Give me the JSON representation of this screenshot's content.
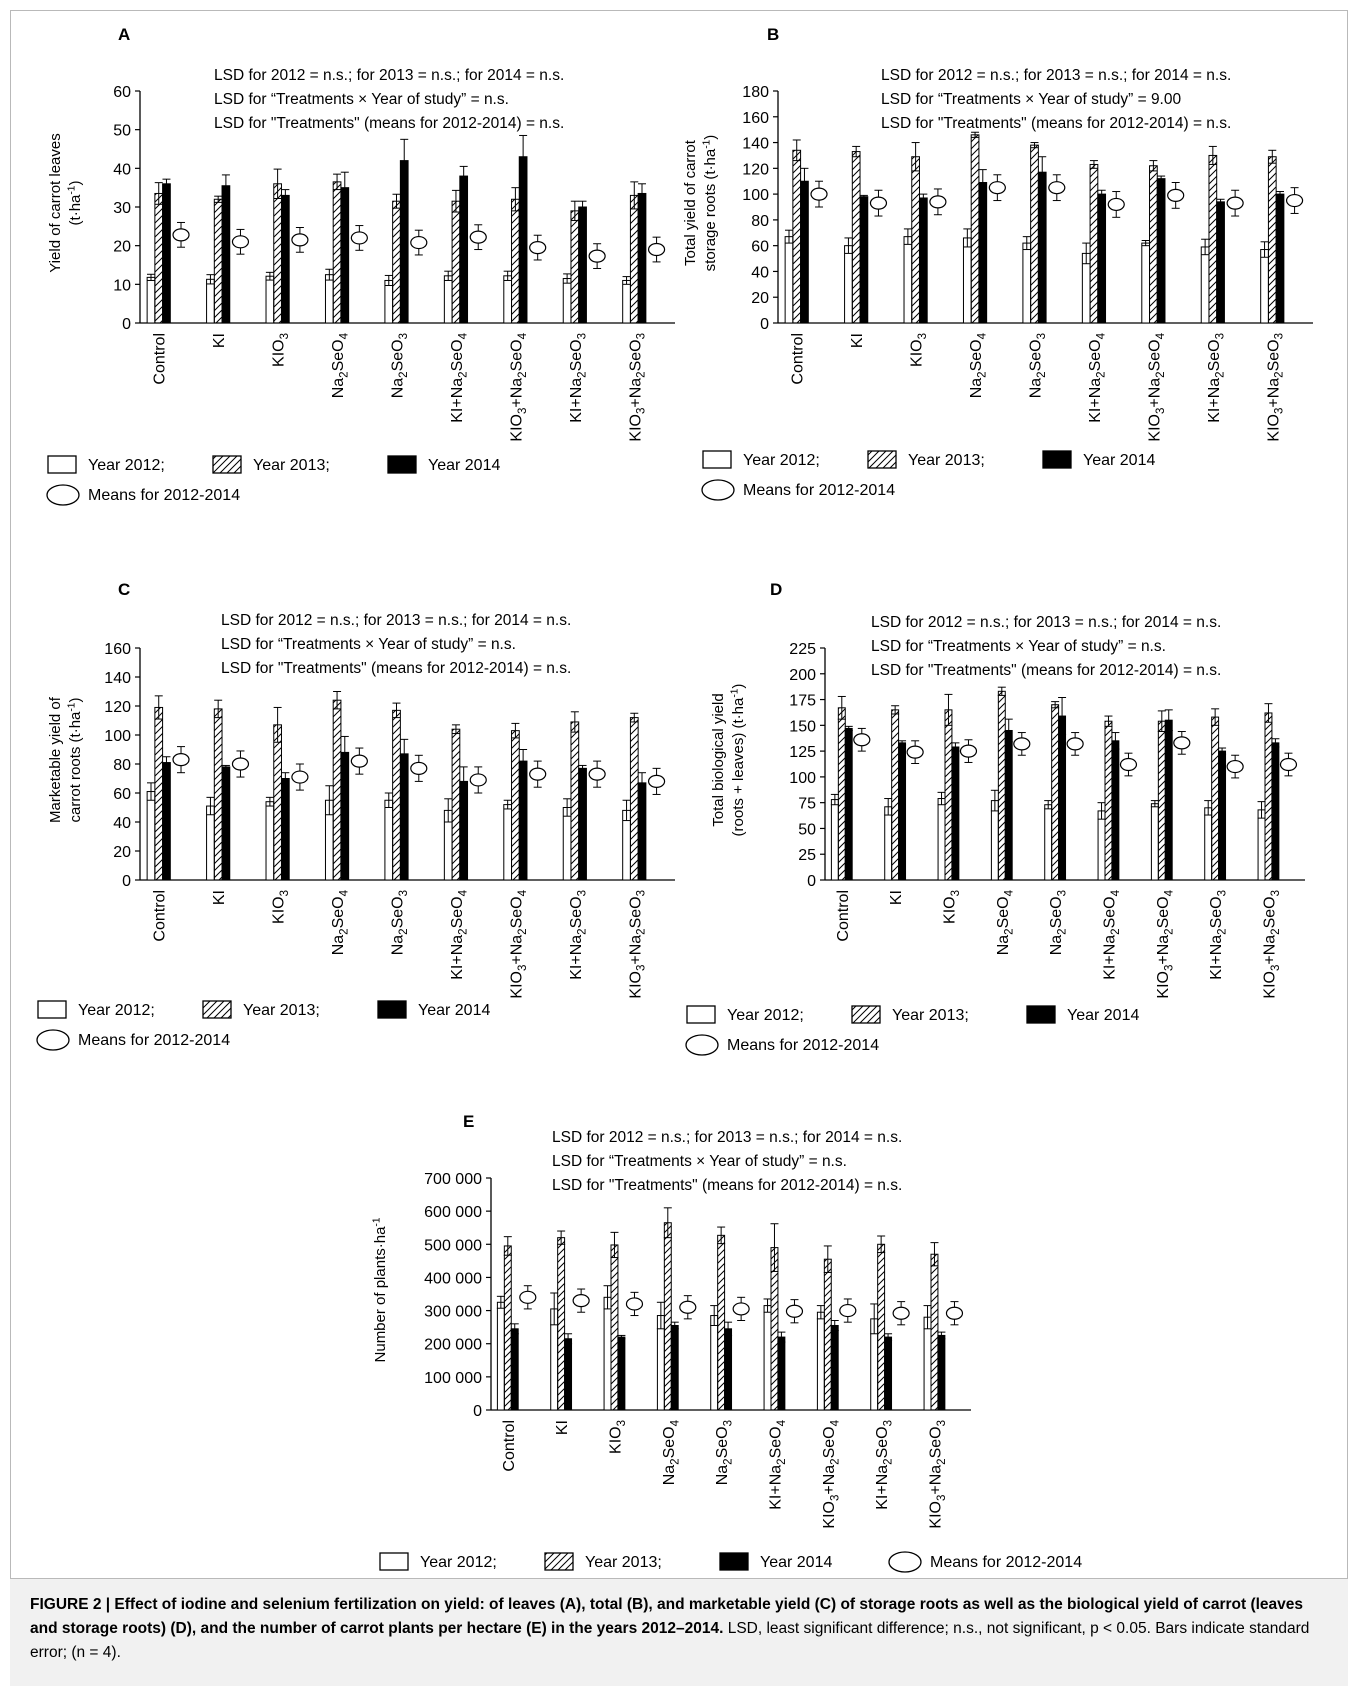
{
  "legend": {
    "y2012": "Year 2012;",
    "y2013": "Year 2013;",
    "y2014": "Year 2014",
    "means": "Means for 2012-2014"
  },
  "caption": {
    "label": "FIGURE 2 | Effect of iodine and selenium fertilization on yield: of leaves (A), total (B), and marketable yield (C) of storage roots as well as the biological yield of carrot (leaves and storage roots) (D), and the number of carrot plants per hectare (E) in the years 2012–2014.",
    "text": " LSD, least significant difference; n.s., not significant, p < 0.05. Bars indicate standard error; (n = 4)."
  },
  "treatments": [
    "Control",
    "KI",
    "KIO3",
    "Na2SeO4",
    "Na2SeO3",
    "KI+Na2SeO4",
    "KIO3+Na2SeO4",
    "KI+Na2SeO3",
    "KIO3+Na2SeO3"
  ],
  "chart_data": [
    {
      "panel": "A",
      "type": "bar",
      "ylabel": "Yield of carrot leaves (t·ha-1)",
      "ylim": [
        0,
        60
      ],
      "yticks": [
        "0",
        "10",
        "20",
        "30",
        "40",
        "50",
        "60"
      ],
      "lsd": [
        "LSD for 2012 = n.s.; for 2013 = n.s.; for 2014 = n.s.",
        "LSD for “Treatments × Year of study” = n.s.",
        "LSD for \"Treatments\" (means for 2012-2014) = n.s."
      ],
      "series": [
        {
          "name": "Year 2012",
          "values": [
            11.8,
            11.3,
            12.1,
            12.5,
            11.0,
            12.2,
            12.2,
            11.5,
            11.0
          ],
          "err": [
            0.8,
            1.2,
            1.0,
            1.4,
            1.3,
            1.2,
            1.2,
            1.2,
            1.0
          ]
        },
        {
          "name": "Year 2013",
          "values": [
            33.5,
            32.0,
            36.0,
            36.5,
            31.5,
            31.5,
            32.0,
            29.0,
            33.0
          ],
          "err": [
            2.8,
            0.8,
            3.8,
            2.0,
            1.8,
            2.8,
            3.0,
            2.5,
            3.5
          ]
        },
        {
          "name": "Year 2014",
          "values": [
            36.0,
            35.5,
            33.0,
            35.0,
            42.0,
            38.0,
            43.0,
            30.0,
            33.5
          ],
          "err": [
            1.2,
            2.8,
            1.5,
            4.0,
            5.5,
            2.5,
            5.5,
            1.5,
            2.5
          ]
        },
        {
          "name": "Means for 2012-2014",
          "values": [
            22.8,
            21.0,
            21.5,
            22.0,
            20.8,
            22.2,
            19.5,
            17.3,
            19.0
          ],
          "err": [
            3.2,
            3.2,
            3.2,
            3.2,
            3.2,
            3.2,
            3.2,
            3.2,
            3.2
          ]
        }
      ]
    },
    {
      "panel": "B",
      "type": "bar",
      "ylabel": "Total yield of carrot storage roots (t·ha-1)",
      "ylim": [
        0,
        180
      ],
      "yticks": [
        "0",
        "20",
        "40",
        "60",
        "80",
        "100",
        "120",
        "140",
        "160",
        "180"
      ],
      "lsd": [
        "LSD for 2012 = n.s.; for 2013 = n.s.; for 2014 = n.s.",
        "LSD for “Treatments × Year of study” = 9.00",
        "LSD for \"Treatments\" (means for 2012-2014) = n.s."
      ],
      "series": [
        {
          "name": "Year 2012",
          "values": [
            67,
            60,
            67,
            66,
            62,
            54,
            62,
            59,
            57
          ],
          "err": [
            5,
            6,
            6,
            7,
            5,
            8,
            2,
            6,
            6
          ]
        },
        {
          "name": "Year 2013",
          "values": [
            134,
            133,
            129,
            146,
            138,
            123,
            122,
            130,
            129
          ],
          "err": [
            8,
            4,
            11,
            2,
            2,
            3,
            4,
            7,
            5
          ]
        },
        {
          "name": "Year 2014",
          "values": [
            110,
            98,
            97,
            109,
            117,
            100,
            112,
            94,
            100
          ],
          "err": [
            10,
            1,
            3,
            10,
            12,
            3,
            2,
            2,
            2
          ]
        },
        {
          "name": "Means for 2012-2014",
          "values": [
            100,
            93,
            94,
            105,
            105,
            92,
            99,
            93,
            95
          ],
          "err": [
            10,
            10,
            10,
            10,
            10,
            10,
            10,
            10,
            10
          ]
        }
      ]
    },
    {
      "panel": "C",
      "type": "bar",
      "ylabel": "Marketable yield of carrot roots (t·ha-1)",
      "ylim": [
        0,
        160
      ],
      "yticks": [
        "0",
        "20",
        "40",
        "60",
        "80",
        "100",
        "120",
        "140",
        "160"
      ],
      "lsd": [
        "LSD for 2012 = n.s.; for 2013 = n.s.; for 2014 = n.s.",
        "LSD for “Treatments × Year of study” = n.s.",
        "LSD for \"Treatments\" (means for 2012-2014) = n.s."
      ],
      "series": [
        {
          "name": "Year 2012",
          "values": [
            61,
            51,
            54,
            55,
            55,
            48,
            52,
            50,
            48
          ],
          "err": [
            6,
            6,
            3,
            10,
            5,
            8,
            3,
            6,
            7
          ]
        },
        {
          "name": "Year 2013",
          "values": [
            119,
            118,
            107,
            124,
            117,
            104,
            103,
            109,
            112
          ],
          "err": [
            8,
            6,
            12,
            6,
            5,
            3,
            5,
            7,
            3
          ]
        },
        {
          "name": "Year 2014",
          "values": [
            81,
            78,
            70,
            88,
            87,
            68,
            82,
            77,
            67
          ],
          "err": [
            4,
            1,
            4,
            11,
            10,
            10,
            8,
            2,
            7
          ]
        },
        {
          "name": "Means for 2012-2014",
          "values": [
            83,
            80,
            71,
            82,
            77,
            69,
            73,
            73,
            68
          ],
          "err": [
            9,
            9,
            9,
            9,
            9,
            9,
            9,
            9,
            9
          ]
        }
      ]
    },
    {
      "panel": "D",
      "type": "bar",
      "ylabel": "Total biological yield (roots + leaves) (t·ha-1)",
      "ylim": [
        0,
        225
      ],
      "yticks": [
        "0",
        "25",
        "50",
        "75",
        "100",
        "125",
        "150",
        "175",
        "200",
        "225"
      ],
      "lsd": [
        "LSD for 2012 = n.s.; for 2013 = n.s.; for 2014 = n.s.",
        "LSD for “Treatments × Year of study” = n.s.",
        "LSD for \"Treatments\" (means for 2012-2014) = n.s."
      ],
      "series": [
        {
          "name": "Year 2012",
          "values": [
            78,
            71,
            79,
            77,
            73,
            67,
            74,
            70,
            68
          ],
          "err": [
            5,
            8,
            6,
            10,
            4,
            8,
            3,
            7,
            8
          ]
        },
        {
          "name": "Year 2013",
          "values": [
            167,
            165,
            165,
            183,
            170,
            154,
            154,
            158,
            162
          ],
          "err": [
            11,
            4,
            15,
            4,
            3,
            5,
            10,
            8,
            9
          ]
        },
        {
          "name": "Year 2014",
          "values": [
            147,
            133,
            129,
            145,
            159,
            135,
            155,
            125,
            133
          ],
          "err": [
            2,
            2,
            4,
            11,
            18,
            8,
            10,
            3,
            4
          ]
        },
        {
          "name": "Means for 2012-2014",
          "values": [
            136,
            124,
            125,
            132,
            132,
            112,
            133,
            110,
            112
          ],
          "err": [
            11,
            11,
            11,
            11,
            11,
            11,
            11,
            11,
            11
          ]
        }
      ]
    },
    {
      "panel": "E",
      "type": "bar",
      "ylabel": "Number of plants·ha-1",
      "ylim": [
        0,
        700000
      ],
      "yticks": [
        "0",
        "100 000",
        "200 000",
        "300 000",
        "400 000",
        "500 000",
        "600 000",
        "700 000"
      ],
      "lsd": [
        "LSD for 2012 = n.s.; for 2013 = n.s.; for 2014 = n.s.",
        "LSD for “Treatments × Year of study” = n.s.",
        "LSD for \"Treatments\" (means for 2012-2014) = n.s."
      ],
      "series": [
        {
          "name": "Year 2012",
          "values": [
            325000,
            305000,
            340000,
            285000,
            285000,
            315000,
            295000,
            275000,
            280000
          ],
          "err": [
            18000,
            48000,
            35000,
            40000,
            30000,
            20000,
            20000,
            45000,
            35000
          ]
        },
        {
          "name": "Year 2013",
          "values": [
            495000,
            520000,
            498000,
            565000,
            527000,
            490000,
            455000,
            500000,
            470000
          ],
          "err": [
            28000,
            20000,
            38000,
            45000,
            25000,
            72000,
            40000,
            25000,
            35000
          ]
        },
        {
          "name": "Year 2014",
          "values": [
            245000,
            215000,
            220000,
            255000,
            245000,
            220000,
            255000,
            220000,
            225000
          ],
          "err": [
            15000,
            15000,
            5000,
            10000,
            20000,
            15000,
            15000,
            10000,
            10000
          ]
        },
        {
          "name": "Means for 2012-2014",
          "values": [
            340000,
            330000,
            320000,
            310000,
            305000,
            298000,
            300000,
            292000,
            292000
          ],
          "err": [
            35000,
            35000,
            35000,
            35000,
            35000,
            35000,
            35000,
            35000,
            35000
          ]
        }
      ]
    }
  ]
}
